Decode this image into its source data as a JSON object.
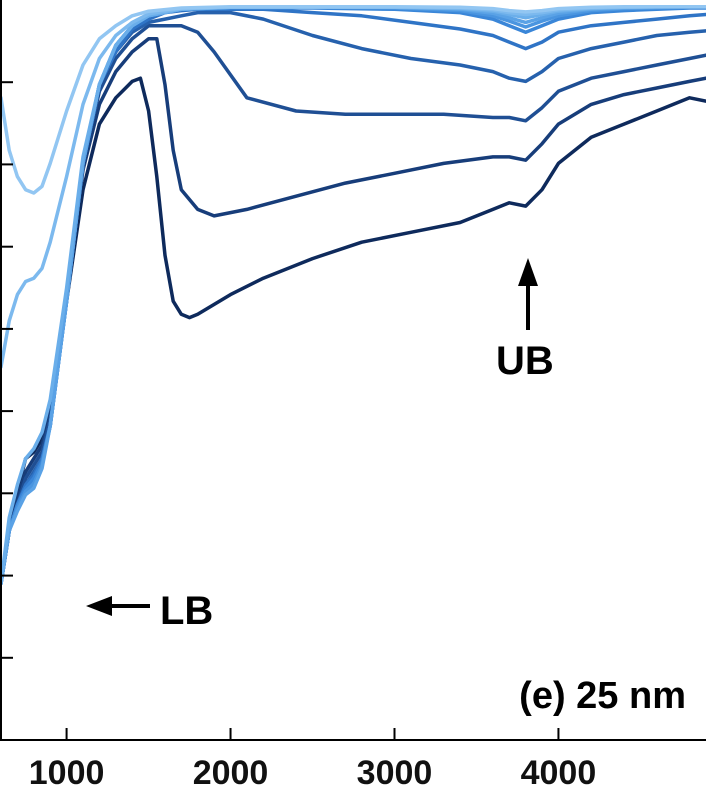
{
  "chart_data": {
    "type": "line",
    "title": "",
    "xlabel": "",
    "ylabel": "",
    "xlim": [
      600,
      4900
    ],
    "ylim": [
      0,
      1
    ],
    "x_ticks": [
      1000,
      2000,
      3000,
      4000
    ],
    "x_tick_labels": [
      "1000",
      "2000",
      "3000",
      "4000"
    ],
    "y_tick_count": 9,
    "grid": false,
    "legend": "none",
    "panel_label": "(e) 25 nm",
    "annotations": [
      {
        "text": "UB",
        "x": 3800,
        "arrow": "up"
      },
      {
        "text": "LB",
        "x": 800,
        "arrow": "left"
      }
    ],
    "colors": [
      "#0e2a5c",
      "#173d7a",
      "#1f4f94",
      "#2661ad",
      "#2f74c6",
      "#3a86d8",
      "#4a95e0",
      "#5aa2e6",
      "#6aaeea",
      "#7cb9ee",
      "#92c6f2"
    ],
    "series": [
      {
        "x": [
          600,
          650,
          700,
          750,
          800,
          850,
          900,
          1000,
          1100,
          1200,
          1300,
          1400,
          1450,
          1500,
          1550,
          1600,
          1650,
          1700,
          1750,
          1800,
          2000,
          2200,
          2500,
          2800,
          3100,
          3400,
          3600,
          3700,
          3800,
          3900,
          4000,
          4200,
          4400,
          4600,
          4800,
          4900
        ],
        "y": [
          0.12,
          0.2,
          0.26,
          0.31,
          0.32,
          0.34,
          0.38,
          0.55,
          0.72,
          0.82,
          0.86,
          0.885,
          0.89,
          0.84,
          0.74,
          0.62,
          0.55,
          0.53,
          0.525,
          0.53,
          0.56,
          0.585,
          0.615,
          0.64,
          0.655,
          0.67,
          0.69,
          0.7,
          0.695,
          0.72,
          0.76,
          0.8,
          0.82,
          0.84,
          0.86,
          0.855
        ]
      },
      {
        "x": [
          600,
          650,
          700,
          750,
          800,
          850,
          900,
          1000,
          1100,
          1200,
          1300,
          1400,
          1500,
          1550,
          1600,
          1650,
          1700,
          1800,
          1900,
          2100,
          2400,
          2700,
          3000,
          3300,
          3600,
          3700,
          3800,
          3900,
          4000,
          4200,
          4400,
          4600,
          4800,
          4900
        ],
        "y": [
          0.12,
          0.2,
          0.25,
          0.29,
          0.31,
          0.33,
          0.38,
          0.56,
          0.75,
          0.85,
          0.9,
          0.93,
          0.95,
          0.95,
          0.88,
          0.78,
          0.72,
          0.69,
          0.68,
          0.69,
          0.71,
          0.73,
          0.745,
          0.76,
          0.77,
          0.77,
          0.765,
          0.79,
          0.82,
          0.85,
          0.865,
          0.875,
          0.885,
          0.89
        ]
      },
      {
        "x": [
          600,
          650,
          700,
          750,
          800,
          850,
          900,
          1000,
          1100,
          1200,
          1300,
          1400,
          1500,
          1600,
          1700,
          1800,
          1900,
          2100,
          2400,
          2700,
          3000,
          3300,
          3600,
          3700,
          3800,
          3900,
          4000,
          4200,
          4400,
          4600,
          4800,
          4900
        ],
        "y": [
          0.12,
          0.2,
          0.24,
          0.28,
          0.3,
          0.32,
          0.37,
          0.56,
          0.76,
          0.87,
          0.92,
          0.95,
          0.97,
          0.97,
          0.97,
          0.96,
          0.93,
          0.86,
          0.84,
          0.835,
          0.835,
          0.835,
          0.83,
          0.83,
          0.825,
          0.845,
          0.87,
          0.89,
          0.9,
          0.91,
          0.92,
          0.925
        ]
      },
      {
        "x": [
          600,
          650,
          700,
          750,
          800,
          850,
          900,
          1000,
          1100,
          1200,
          1300,
          1400,
          1500,
          1600,
          1700,
          1800,
          1900,
          2000,
          2200,
          2500,
          2800,
          3100,
          3400,
          3600,
          3700,
          3800,
          3900,
          4000,
          4200,
          4400,
          4600,
          4800,
          4900
        ],
        "y": [
          0.12,
          0.2,
          0.24,
          0.27,
          0.29,
          0.31,
          0.36,
          0.55,
          0.76,
          0.88,
          0.93,
          0.96,
          0.975,
          0.98,
          0.985,
          0.99,
          0.99,
          0.99,
          0.98,
          0.955,
          0.935,
          0.92,
          0.91,
          0.9,
          0.89,
          0.885,
          0.9,
          0.92,
          0.935,
          0.945,
          0.955,
          0.96,
          0.962
        ]
      },
      {
        "x": [
          600,
          650,
          700,
          750,
          800,
          850,
          900,
          1000,
          1100,
          1200,
          1300,
          1400,
          1500,
          1600,
          1700,
          1800,
          2000,
          2200,
          2500,
          2800,
          3100,
          3400,
          3600,
          3700,
          3800,
          3900,
          4000,
          4200,
          4400,
          4600,
          4800,
          4900
        ],
        "y": [
          0.12,
          0.2,
          0.24,
          0.27,
          0.285,
          0.31,
          0.36,
          0.55,
          0.76,
          0.88,
          0.93,
          0.965,
          0.98,
          0.99,
          0.993,
          0.995,
          0.995,
          0.995,
          0.99,
          0.985,
          0.975,
          0.965,
          0.955,
          0.945,
          0.935,
          0.945,
          0.96,
          0.97,
          0.975,
          0.98,
          0.985,
          0.987
        ]
      },
      {
        "x": [
          600,
          650,
          700,
          750,
          800,
          850,
          900,
          1000,
          1100,
          1200,
          1300,
          1400,
          1500,
          1700,
          2000,
          2500,
          3000,
          3400,
          3600,
          3700,
          3800,
          3900,
          4000,
          4200,
          4400,
          4600,
          4800,
          4900
        ],
        "y": [
          0.12,
          0.2,
          0.24,
          0.265,
          0.28,
          0.305,
          0.36,
          0.55,
          0.76,
          0.88,
          0.94,
          0.97,
          0.985,
          0.995,
          0.997,
          0.997,
          0.995,
          0.99,
          0.98,
          0.97,
          0.96,
          0.97,
          0.98,
          0.99,
          0.993,
          0.995,
          0.997,
          0.997
        ]
      },
      {
        "x": [
          600,
          650,
          700,
          750,
          800,
          850,
          900,
          1000,
          1100,
          1200,
          1300,
          1400,
          1500,
          1700,
          2000,
          2500,
          3000,
          3400,
          3600,
          3700,
          3800,
          3900,
          4000,
          4200,
          4400,
          4600,
          4800,
          4900
        ],
        "y": [
          0.12,
          0.2,
          0.235,
          0.26,
          0.272,
          0.3,
          0.36,
          0.55,
          0.76,
          0.88,
          0.94,
          0.97,
          0.985,
          0.995,
          0.998,
          0.998,
          0.997,
          0.993,
          0.985,
          0.977,
          0.968,
          0.977,
          0.985,
          0.993,
          0.996,
          0.997,
          0.998,
          0.998
        ]
      },
      {
        "x": [
          600,
          650,
          700,
          750,
          800,
          850,
          900,
          1000,
          1100,
          1200,
          1300,
          1400,
          1500,
          1700,
          2000,
          2500,
          3000,
          3400,
          3600,
          3700,
          3800,
          3900,
          4000,
          4200,
          4400,
          4600,
          4800,
          4900
        ],
        "y": [
          0.12,
          0.2,
          0.23,
          0.255,
          0.265,
          0.295,
          0.36,
          0.55,
          0.76,
          0.88,
          0.94,
          0.97,
          0.985,
          0.995,
          0.998,
          0.998,
          0.998,
          0.995,
          0.989,
          0.982,
          0.975,
          0.982,
          0.989,
          0.995,
          0.997,
          0.998,
          0.999,
          0.999
        ]
      },
      {
        "x": [
          600,
          650,
          700,
          750,
          800,
          850,
          900,
          1000,
          1100,
          1200,
          1300,
          1400,
          1500,
          1700,
          2000,
          2500,
          3000,
          3400,
          3600,
          3700,
          3800,
          3900,
          4000,
          4200,
          4400,
          4600,
          4800,
          4900
        ],
        "y": [
          0.12,
          0.22,
          0.27,
          0.31,
          0.325,
          0.35,
          0.4,
          0.57,
          0.77,
          0.88,
          0.94,
          0.97,
          0.985,
          0.995,
          0.998,
          0.998,
          0.998,
          0.996,
          0.992,
          0.987,
          0.982,
          0.987,
          0.992,
          0.996,
          0.998,
          0.999,
          0.999,
          0.999
        ]
      },
      {
        "x": [
          600,
          650,
          700,
          750,
          800,
          850,
          900,
          1000,
          1100,
          1200,
          1300,
          1400,
          1500,
          1700,
          2000,
          2500,
          3000,
          3400,
          3600,
          3700,
          3800,
          3900,
          4000,
          4200,
          4400,
          4600,
          4800,
          4900
        ],
        "y": [
          0.45,
          0.52,
          0.56,
          0.58,
          0.585,
          0.6,
          0.64,
          0.74,
          0.85,
          0.92,
          0.955,
          0.975,
          0.988,
          0.996,
          0.998,
          0.998,
          0.998,
          0.997,
          0.994,
          0.99,
          0.987,
          0.99,
          0.994,
          0.997,
          0.998,
          0.999,
          0.999,
          0.999
        ]
      },
      {
        "x": [
          600,
          650,
          700,
          750,
          800,
          850,
          900,
          1000,
          1100,
          1200,
          1300,
          1400,
          1500,
          1700,
          2000,
          2500,
          3000,
          3400,
          3600,
          3700,
          3800,
          3900,
          4000,
          4200,
          4400,
          4600,
          4800,
          4900
        ],
        "y": [
          0.86,
          0.78,
          0.74,
          0.72,
          0.715,
          0.725,
          0.76,
          0.84,
          0.91,
          0.95,
          0.97,
          0.985,
          0.992,
          0.997,
          0.999,
          0.999,
          0.999,
          0.998,
          0.996,
          0.993,
          0.991,
          0.993,
          0.996,
          0.998,
          0.999,
          0.999,
          0.999,
          0.999
        ]
      }
    ]
  }
}
